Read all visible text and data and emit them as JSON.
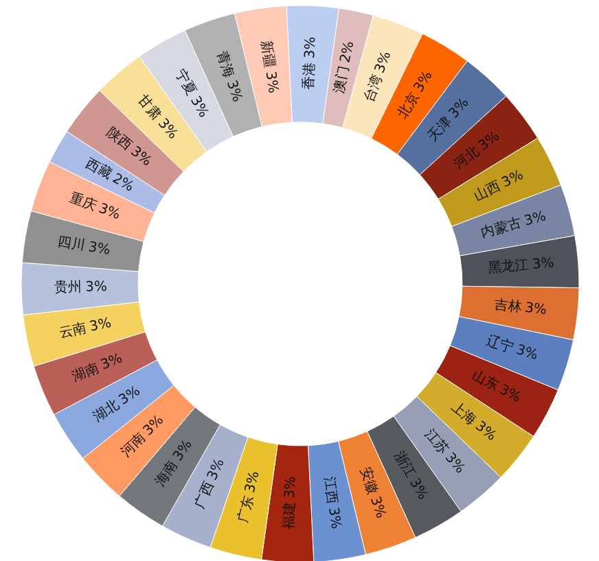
{
  "chart_data": {
    "type": "donut",
    "categories": [
      "北京",
      "天津",
      "河北",
      "山西",
      "内蒙古",
      "黑龙江",
      "吉林",
      "辽宁",
      "山东",
      "上海",
      "江苏",
      "浙江",
      "安徽",
      "江西",
      "福建",
      "广东",
      "广西",
      "海南",
      "河南",
      "湖北",
      "湖南",
      "云南",
      "贵州",
      "四川",
      "重庆",
      "西藏",
      "陕西",
      "甘肃",
      "宁夏",
      "青海",
      "新疆",
      "香港",
      "澳门",
      "台湾"
    ],
    "values": [
      3,
      3,
      3,
      3,
      3,
      3,
      3,
      3,
      3,
      3,
      3,
      3,
      3,
      3,
      3,
      3,
      3,
      3,
      3,
      3,
      3,
      3,
      3,
      3,
      3,
      2,
      3,
      3,
      3,
      3,
      3,
      3,
      2,
      3
    ],
    "colors": [
      "#ff6600",
      "#56709f",
      "#8b2312",
      "#c09a1c",
      "#7985a3",
      "#4f5259",
      "#dd7030",
      "#5b7fbf",
      "#9c2313",
      "#d2ac2a",
      "#979fb6",
      "#56595e",
      "#ef8134",
      "#6b91d0",
      "#a5260f",
      "#eac12c",
      "#a6b0cb",
      "#74777c",
      "#ff9a63",
      "#8aa8dd",
      "#bb6058",
      "#f5d160",
      "#b6c2dc",
      "#909090",
      "#ffb394",
      "#abbde6",
      "#cf9692",
      "#f7df97",
      "#d6d8e2",
      "#b1b1b1",
      "#ffcab5",
      "#bccdf2",
      "#dfbdbd",
      "#fbe6bc"
    ],
    "value_labels": [
      "3%",
      "3%",
      "3%",
      "3%",
      "3%",
      "3%",
      "3%",
      "3%",
      "3%",
      "3%",
      "3%",
      "3%",
      "3%",
      "3%",
      "3%",
      "3%",
      "3%",
      "3%",
      "3%",
      "3%",
      "3%",
      "3%",
      "3%",
      "3%",
      "3%",
      "2%",
      "3%",
      "3%",
      "3%",
      "3%",
      "3%",
      "3%",
      "2%",
      "3%"
    ]
  }
}
